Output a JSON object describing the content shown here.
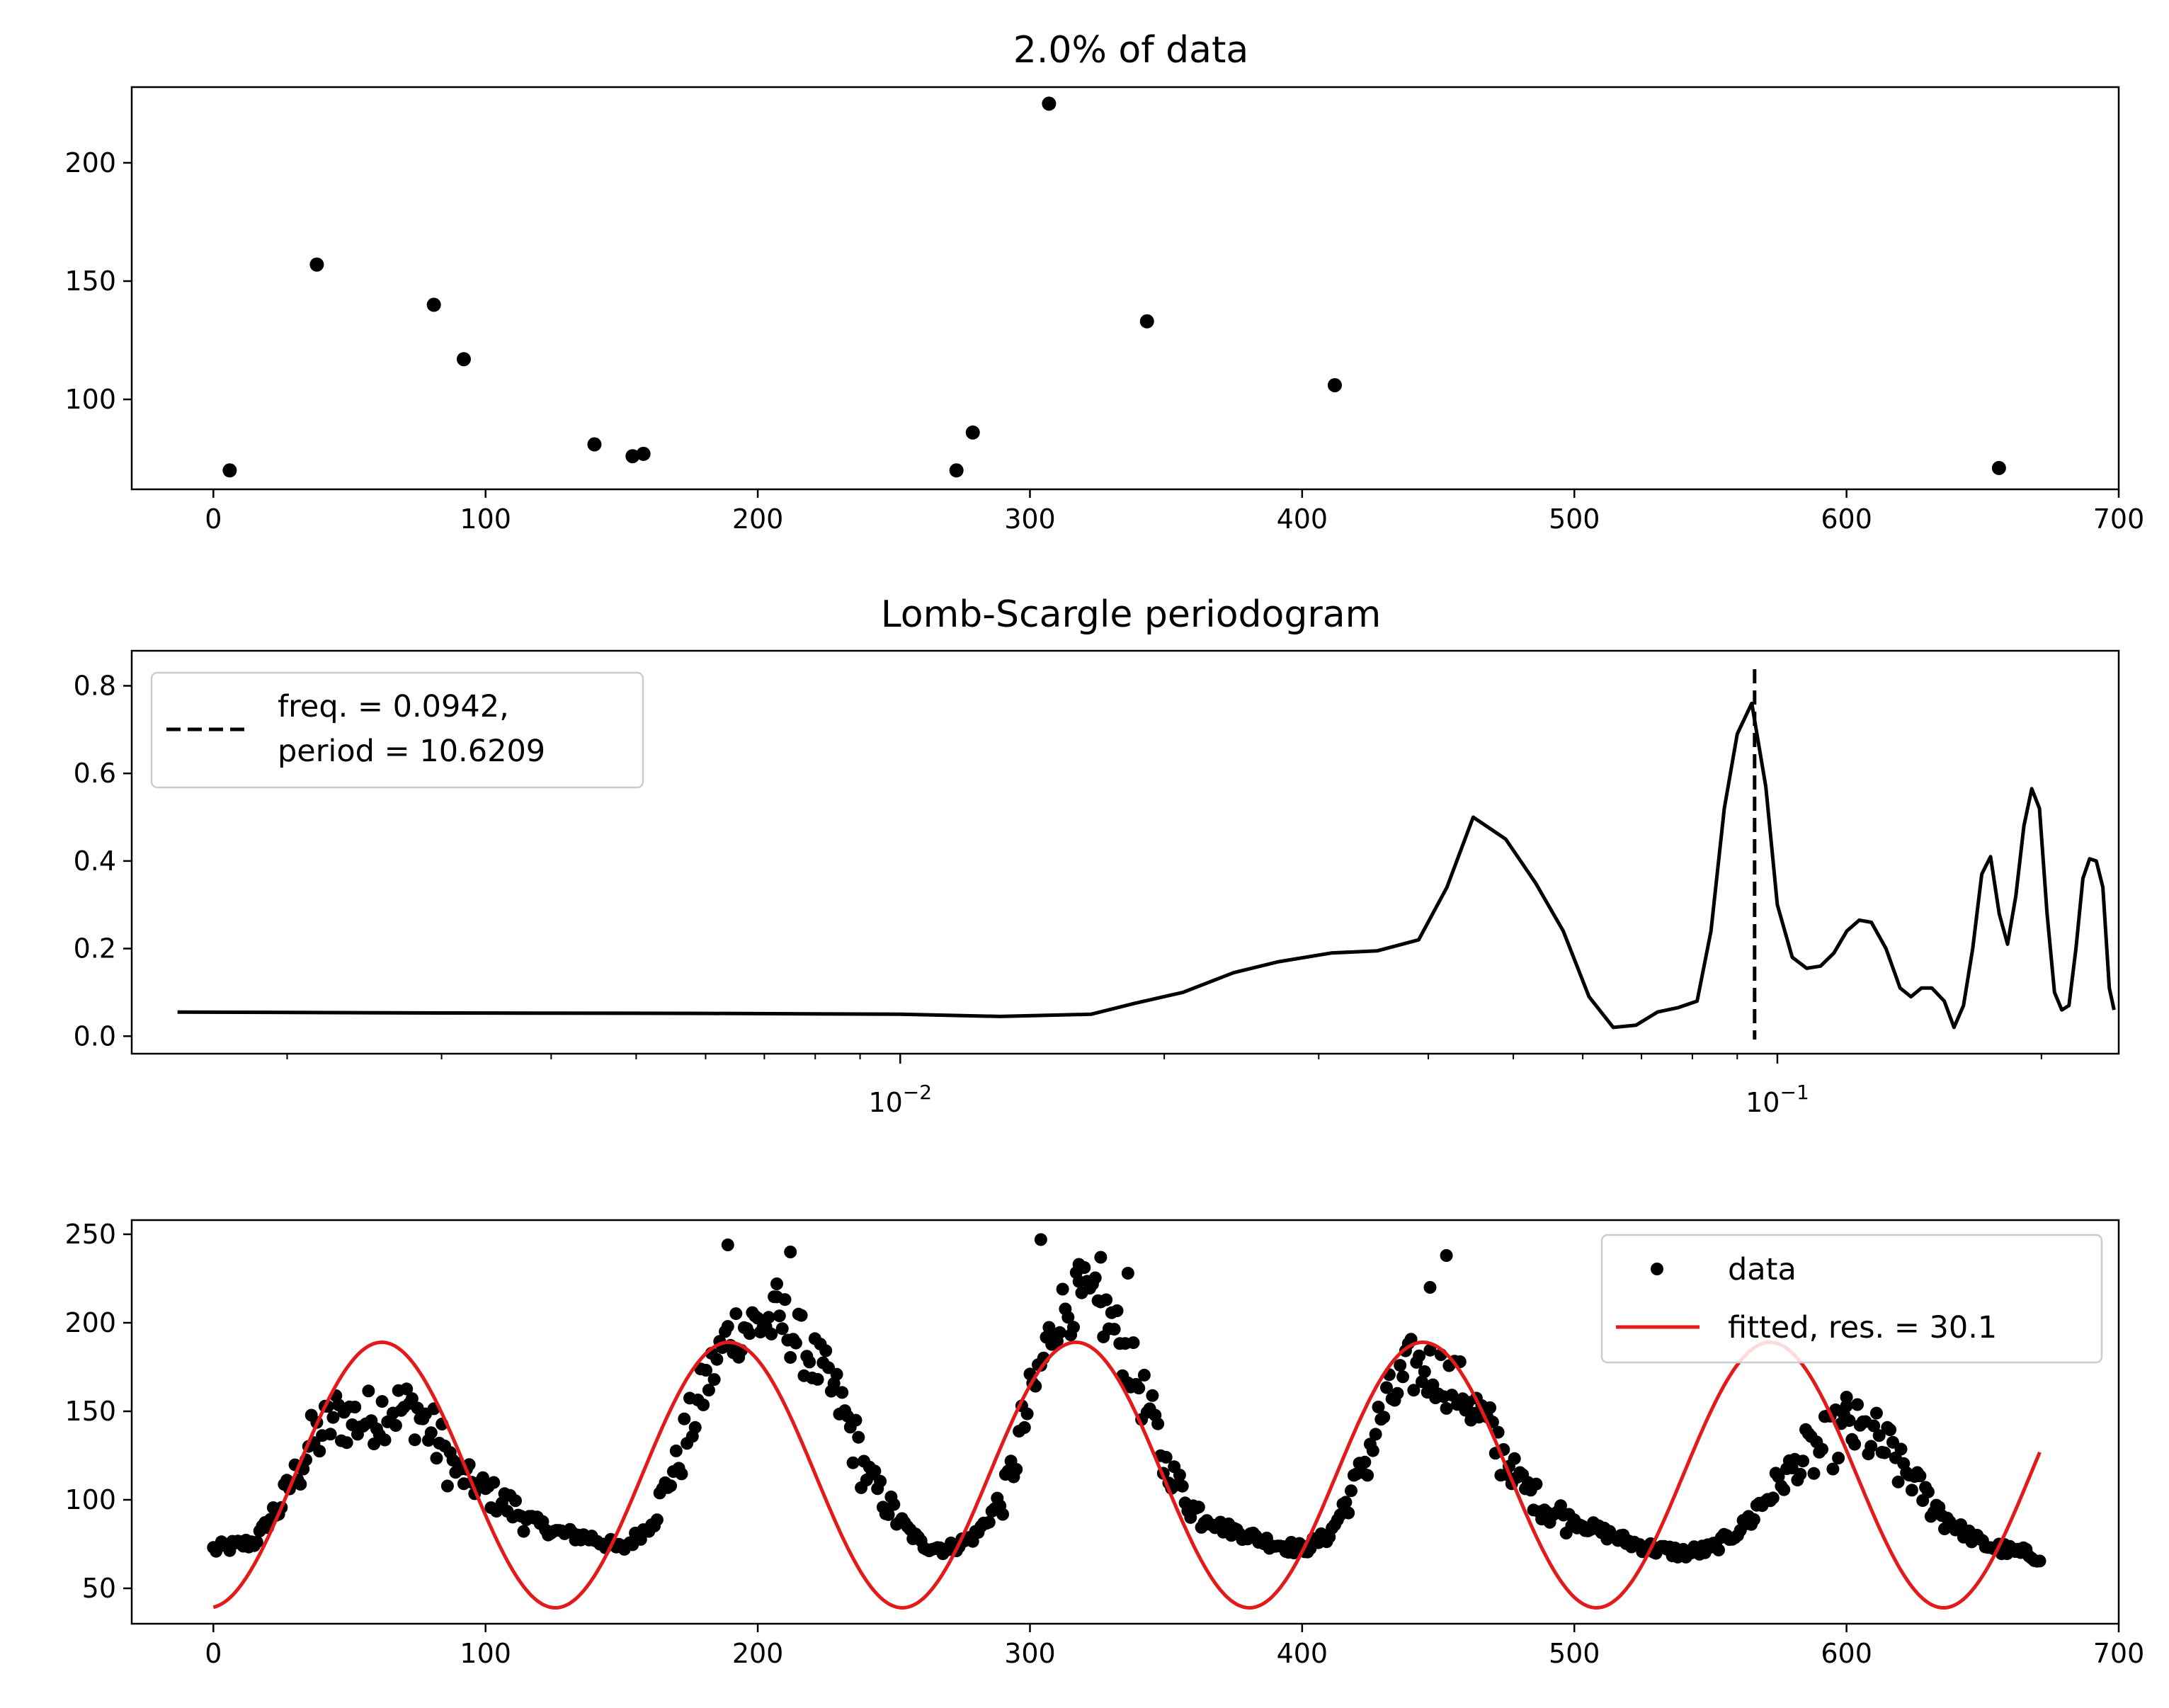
{
  "chart_data": [
    {
      "type": "scatter",
      "title": "2.0% of data",
      "xlabel": "",
      "ylabel": "",
      "xlim": [
        -30,
        700
      ],
      "ylim": [
        62,
        232
      ],
      "xticks": [
        0,
        100,
        200,
        300,
        400,
        500,
        600,
        700
      ],
      "yticks": [
        100,
        150,
        200
      ],
      "grid": false,
      "marker_color": "#000000",
      "points": [
        [
          6,
          70
        ],
        [
          38,
          157
        ],
        [
          81,
          140
        ],
        [
          92,
          117
        ],
        [
          140,
          81
        ],
        [
          154,
          76
        ],
        [
          158,
          77
        ],
        [
          273,
          70
        ],
        [
          279,
          86
        ],
        [
          307,
          225
        ],
        [
          343,
          133
        ],
        [
          412,
          106
        ],
        [
          656,
          71
        ]
      ]
    },
    {
      "type": "line",
      "title": "Lomb-Scargle periodogram",
      "xlabel": "",
      "ylabel": "",
      "xscale": "log",
      "xlim": [
        0.00133,
        0.245
      ],
      "ylim": [
        -0.04,
        0.88
      ],
      "xticks": [
        0.01,
        0.1
      ],
      "xtick_labels": [
        "10−2",
        "10−1"
      ],
      "yticks": [
        0.0,
        0.2,
        0.4,
        0.6,
        0.8
      ],
      "grid": false,
      "line_color": "#000000",
      "peak_line": {
        "x": 0.0942,
        "style": "dashed",
        "color": "#000000"
      },
      "legend": {
        "location": "upper left",
        "entries": [
          "freq. = 0.0942,",
          "period = 10.6209"
        ]
      },
      "points": [
        [
          0.0015,
          0.055
        ],
        [
          0.003,
          0.053
        ],
        [
          0.006,
          0.052
        ],
        [
          0.01,
          0.05
        ],
        [
          0.013,
          0.045
        ],
        [
          0.0165,
          0.05
        ],
        [
          0.0185,
          0.075
        ],
        [
          0.021,
          0.1
        ],
        [
          0.024,
          0.145
        ],
        [
          0.027,
          0.17
        ],
        [
          0.031,
          0.19
        ],
        [
          0.035,
          0.195
        ],
        [
          0.039,
          0.22
        ],
        [
          0.042,
          0.34
        ],
        [
          0.045,
          0.5
        ],
        [
          0.049,
          0.45
        ],
        [
          0.053,
          0.35
        ],
        [
          0.057,
          0.24
        ],
        [
          0.061,
          0.09
        ],
        [
          0.065,
          0.02
        ],
        [
          0.069,
          0.025
        ],
        [
          0.073,
          0.055
        ],
        [
          0.077,
          0.065
        ],
        [
          0.081,
          0.08
        ],
        [
          0.084,
          0.24
        ],
        [
          0.087,
          0.52
        ],
        [
          0.09,
          0.69
        ],
        [
          0.0935,
          0.76
        ],
        [
          0.097,
          0.57
        ],
        [
          0.1,
          0.3
        ],
        [
          0.104,
          0.18
        ],
        [
          0.108,
          0.155
        ],
        [
          0.112,
          0.16
        ],
        [
          0.116,
          0.19
        ],
        [
          0.12,
          0.24
        ],
        [
          0.124,
          0.265
        ],
        [
          0.128,
          0.26
        ],
        [
          0.133,
          0.2
        ],
        [
          0.138,
          0.11
        ],
        [
          0.142,
          0.09
        ],
        [
          0.146,
          0.11
        ],
        [
          0.15,
          0.11
        ],
        [
          0.155,
          0.08
        ],
        [
          0.159,
          0.02
        ],
        [
          0.163,
          0.07
        ],
        [
          0.167,
          0.2
        ],
        [
          0.171,
          0.37
        ],
        [
          0.175,
          0.41
        ],
        [
          0.179,
          0.28
        ],
        [
          0.183,
          0.21
        ],
        [
          0.187,
          0.32
        ],
        [
          0.191,
          0.48
        ],
        [
          0.195,
          0.565
        ],
        [
          0.199,
          0.52
        ],
        [
          0.203,
          0.28
        ],
        [
          0.207,
          0.1
        ],
        [
          0.211,
          0.06
        ],
        [
          0.215,
          0.07
        ],
        [
          0.219,
          0.2
        ],
        [
          0.223,
          0.36
        ],
        [
          0.227,
          0.405
        ],
        [
          0.231,
          0.4
        ],
        [
          0.235,
          0.34
        ],
        [
          0.239,
          0.11
        ],
        [
          0.242,
          0.06
        ]
      ]
    },
    {
      "type": "scatter",
      "title": "",
      "xlabel": "",
      "ylabel": "",
      "xlim": [
        -30,
        700
      ],
      "ylim": [
        30,
        258
      ],
      "xticks": [
        0,
        100,
        200,
        300,
        400,
        500,
        600,
        700
      ],
      "yticks": [
        50,
        100,
        150,
        200,
        250
      ],
      "grid": false,
      "legend": {
        "location": "upper right",
        "entries": [
          "data",
          "fitted, res. = 30.1"
        ]
      },
      "series": [
        {
          "name": "data",
          "style": "points",
          "color": "#000000",
          "n": 672,
          "segments": [
            [
              0,
              72
            ],
            [
              15,
              76
            ],
            [
              25,
              98
            ],
            [
              35,
              130
            ],
            [
              45,
              147
            ],
            [
              55,
              145
            ],
            [
              65,
              152
            ],
            [
              75,
              150
            ],
            [
              90,
              115
            ],
            [
              105,
              100
            ],
            [
              115,
              90
            ],
            [
              125,
              82
            ],
            [
              140,
              78
            ],
            [
              150,
              72
            ],
            [
              160,
              85
            ],
            [
              170,
              120
            ],
            [
              180,
              162
            ],
            [
              190,
              195
            ],
            [
              200,
              200
            ],
            [
              210,
              200
            ],
            [
              220,
              180
            ],
            [
              230,
              155
            ],
            [
              240,
              115
            ],
            [
              250,
              92
            ],
            [
              260,
              75
            ],
            [
              270,
              72
            ],
            [
              280,
              80
            ],
            [
              290,
              100
            ],
            [
              300,
              155
            ],
            [
              310,
              205
            ],
            [
              320,
              215
            ],
            [
              330,
              200
            ],
            [
              340,
              165
            ],
            [
              350,
              120
            ],
            [
              360,
              95
            ],
            [
              370,
              85
            ],
            [
              380,
              80
            ],
            [
              390,
              75
            ],
            [
              400,
              72
            ],
            [
              410,
              80
            ],
            [
              420,
              110
            ],
            [
              430,
              150
            ],
            [
              440,
              175
            ],
            [
              450,
              172
            ],
            [
              460,
              160
            ],
            [
              470,
              135
            ],
            [
              480,
              110
            ],
            [
              490,
              95
            ],
            [
              500,
              88
            ],
            [
              510,
              82
            ],
            [
              520,
              76
            ],
            [
              530,
              72
            ],
            [
              540,
              70
            ],
            [
              550,
              72
            ],
            [
              560,
              82
            ],
            [
              570,
              100
            ],
            [
              580,
              118
            ],
            [
              590,
              128
            ],
            [
              600,
              140
            ],
            [
              610,
              135
            ],
            [
              620,
              120
            ],
            [
              630,
              100
            ],
            [
              640,
              85
            ],
            [
              650,
              75
            ],
            [
              660,
              71
            ],
            [
              671,
              68
            ]
          ],
          "outliers": [
            [
              189,
              244
            ],
            [
              212,
              240
            ],
            [
              304,
              247
            ],
            [
              326,
              237
            ],
            [
              336,
              228
            ],
            [
              453,
              238
            ],
            [
              447,
              220
            ],
            [
              207,
              222
            ],
            [
              318,
              233
            ],
            [
              600,
              158
            ]
          ]
        },
        {
          "name": "fitted, res. = 30.1",
          "style": "line",
          "color": "#e31a1a",
          "model": {
            "offset": 114,
            "amplitude": 75,
            "period": 127.5,
            "phase_shift": 30,
            "x_start": 0,
            "x_end": 671
          }
        }
      ]
    }
  ]
}
